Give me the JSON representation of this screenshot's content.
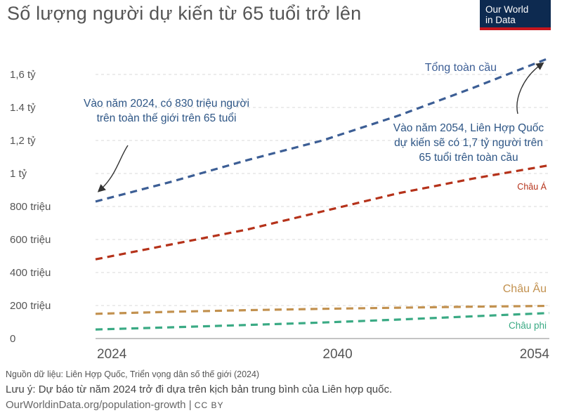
{
  "page": {
    "title": "Số lượng người dự kiến từ 65 tuổi trở lên",
    "logo_line1": "Our World",
    "logo_line2": "in Data",
    "source": "Nguồn dữ liệu: Liên Hợp Quốc, Triển vọng dân số thế giới (2024)",
    "note": "Lưu ý: Dự báo từ năm 2024 trở đi dựa trên kịch bản trung bình của Liên hợp quốc.",
    "url": "OurWorldinData.org/population-growth",
    "separator": "|",
    "license": "CC BY"
  },
  "chart_data": {
    "type": "line",
    "xlim": [
      2024,
      2054
    ],
    "ylim": [
      0,
      1700000000
    ],
    "x_ticks": [
      {
        "value": 2024,
        "label": "2024"
      },
      {
        "value": 2040,
        "label": "2040"
      },
      {
        "value": 2054,
        "label": "2054"
      }
    ],
    "y_ticks": [
      {
        "value": 0,
        "label": "0"
      },
      {
        "value": 200000000,
        "label": "200 triệu"
      },
      {
        "value": 400000000,
        "label": "400 triệu"
      },
      {
        "value": 600000000,
        "label": "600 triệu"
      },
      {
        "value": 800000000,
        "label": "800 triệu"
      },
      {
        "value": 1000000000,
        "label": "1 tỷ"
      },
      {
        "value": 1200000000,
        "label": "1,2 tỷ"
      },
      {
        "value": 1400000000,
        "label": "1.4 tỷ"
      },
      {
        "value": 1600000000,
        "label": "1,6 tỷ"
      }
    ],
    "grid": true,
    "line_style": "dashed",
    "x": [
      2024,
      2029,
      2034,
      2039,
      2044,
      2049,
      2054
    ],
    "series": [
      {
        "name": "Tổng toàn cầu",
        "color": "#3c5e95",
        "values": [
          830000000,
          950000000,
          1080000000,
          1200000000,
          1350000000,
          1520000000,
          1700000000
        ]
      },
      {
        "name": "Châu Á",
        "color": "#b5321a",
        "values": [
          480000000,
          570000000,
          660000000,
          770000000,
          880000000,
          970000000,
          1050000000
        ]
      },
      {
        "name": "Châu Âu",
        "color": "#c2914f",
        "values": [
          150000000,
          162000000,
          172000000,
          180000000,
          187000000,
          193000000,
          198000000
        ]
      },
      {
        "name": "Châu phi",
        "color": "#3aaa84",
        "values": [
          55000000,
          68000000,
          82000000,
          97000000,
          115000000,
          135000000,
          155000000
        ]
      }
    ],
    "annotations": [
      {
        "id": "a2024",
        "lines": [
          "Vào năm 2024, có 830 triệu người",
          "trên toàn thế giới trên 65 tuổi"
        ]
      },
      {
        "id": "a2054",
        "lines": [
          "Vào năm 2054, Liên Hợp Quốc",
          "dự kiến sẽ có 1,7 tỷ người trên",
          "65 tuổi trên toàn cầu"
        ]
      }
    ]
  }
}
